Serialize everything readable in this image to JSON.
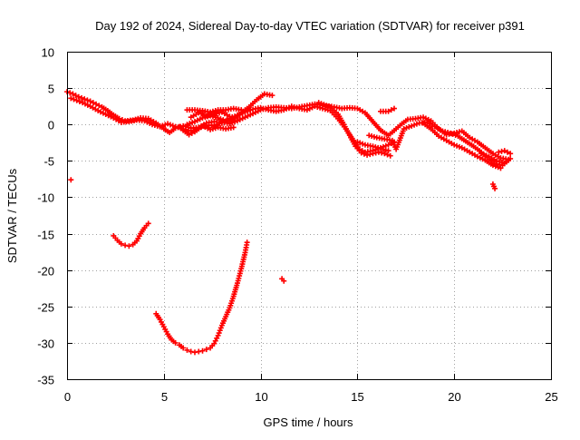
{
  "chart_data": {
    "type": "scatter",
    "title": "Day 192 of 2024, Sidereal Day-to-day VTEC variation (SDTVAR) for receiver p391",
    "xlabel": "GPS time / hours",
    "ylabel": "SDTVAR / TECUs",
    "xlim": [
      0,
      25
    ],
    "ylim": [
      -35,
      10
    ],
    "xticks": [
      "0",
      "5",
      "10",
      "15",
      "20",
      "25"
    ],
    "yticks": [
      "10",
      "5",
      "0",
      "-5",
      "-10",
      "-15",
      "-20",
      "-25",
      "-30",
      "-35"
    ],
    "grid": true,
    "marker": "+",
    "color": "#ff0000",
    "series": [
      {
        "name": "main-band-a",
        "points": [
          [
            0.0,
            4.5
          ],
          [
            0.3,
            4.2
          ],
          [
            0.6,
            3.8
          ],
          [
            0.9,
            3.5
          ],
          [
            1.2,
            3.2
          ],
          [
            1.5,
            2.8
          ],
          [
            1.8,
            2.4
          ],
          [
            2.1,
            1.9
          ],
          [
            2.4,
            1.3
          ],
          [
            2.7,
            0.8
          ],
          [
            3.0,
            0.5
          ],
          [
            3.4,
            0.6
          ],
          [
            3.8,
            0.9
          ],
          [
            4.2,
            0.8
          ],
          [
            4.6,
            0.2
          ],
          [
            5.0,
            -0.6
          ],
          [
            5.3,
            -1.1
          ],
          [
            5.6,
            -0.5
          ],
          [
            6.0,
            -0.2
          ],
          [
            6.4,
            -0.5
          ],
          [
            6.8,
            -0.4
          ],
          [
            7.2,
            0.2
          ],
          [
            7.6,
            0.4
          ],
          [
            8.0,
            0.3
          ],
          [
            8.4,
            0.1
          ],
          [
            8.8,
            0.5
          ],
          [
            9.2,
            1.0
          ],
          [
            9.6,
            1.5
          ],
          [
            10.0,
            2.0
          ],
          [
            10.4,
            2.3
          ],
          [
            10.8,
            2.4
          ],
          [
            11.2,
            2.3
          ],
          [
            11.6,
            2.2
          ],
          [
            12.0,
            2.4
          ],
          [
            12.4,
            2.6
          ],
          [
            12.8,
            2.8
          ],
          [
            13.2,
            2.6
          ],
          [
            13.6,
            2.4
          ],
          [
            14.0,
            1.4
          ],
          [
            14.3,
            0.0
          ],
          [
            14.6,
            -1.5
          ],
          [
            14.9,
            -3.0
          ],
          [
            15.2,
            -3.9
          ],
          [
            15.5,
            -4.2
          ],
          [
            15.8,
            -4.0
          ],
          [
            16.1,
            -3.8
          ],
          [
            16.4,
            -4.0
          ],
          [
            16.7,
            -4.3
          ]
        ]
      },
      {
        "name": "main-band-b",
        "points": [
          [
            0.2,
            3.6
          ],
          [
            0.5,
            3.3
          ],
          [
            0.8,
            3.0
          ],
          [
            1.2,
            2.5
          ],
          [
            1.6,
            1.9
          ],
          [
            2.0,
            1.4
          ],
          [
            2.4,
            0.9
          ],
          [
            2.8,
            0.3
          ],
          [
            3.2,
            0.4
          ],
          [
            3.6,
            0.6
          ],
          [
            4.0,
            0.5
          ],
          [
            4.4,
            0.0
          ],
          [
            4.8,
            -0.3
          ],
          [
            5.2,
            0.1
          ],
          [
            5.6,
            -0.3
          ],
          [
            6.0,
            -0.6
          ],
          [
            6.4,
            -0.9
          ],
          [
            6.8,
            -0.5
          ],
          [
            7.2,
            -0.1
          ],
          [
            7.6,
            -0.1
          ],
          [
            8.0,
            0.2
          ],
          [
            8.4,
            0.8
          ],
          [
            8.8,
            1.3
          ],
          [
            9.2,
            1.7
          ],
          [
            9.6,
            2.1
          ],
          [
            10.0,
            2.3
          ],
          [
            10.4,
            2.0
          ],
          [
            10.8,
            1.8
          ],
          [
            11.2,
            2.0
          ],
          [
            11.6,
            2.5
          ],
          [
            12.0,
            2.2
          ],
          [
            12.4,
            2.0
          ],
          [
            12.8,
            2.5
          ],
          [
            13.2,
            2.2
          ],
          [
            13.6,
            1.9
          ],
          [
            14.0,
            0.8
          ],
          [
            14.4,
            -0.6
          ],
          [
            14.8,
            -2.2
          ],
          [
            15.1,
            -3.4
          ],
          [
            15.4,
            -3.8
          ],
          [
            15.8,
            -3.6
          ],
          [
            16.2,
            -3.2
          ],
          [
            16.6,
            -2.8
          ],
          [
            16.9,
            -2.4
          ]
        ]
      },
      {
        "name": "mid-arcs",
        "points": [
          [
            6.2,
            0.0
          ],
          [
            6.6,
            0.4
          ],
          [
            7.0,
            0.9
          ],
          [
            7.4,
            1.2
          ],
          [
            7.8,
            0.9
          ],
          [
            8.2,
            0.5
          ],
          [
            8.6,
            0.7
          ],
          [
            9.0,
            1.6
          ],
          [
            9.4,
            2.4
          ],
          [
            9.8,
            3.4
          ],
          [
            10.2,
            4.2
          ],
          [
            10.6,
            4.0
          ],
          [
            6.4,
            1.0
          ],
          [
            6.8,
            1.6
          ],
          [
            7.2,
            1.2
          ],
          [
            7.6,
            1.4
          ],
          [
            8.0,
            1.7
          ],
          [
            8.4,
            1.1
          ],
          [
            8.8,
            0.9
          ],
          [
            5.8,
            -0.3
          ],
          [
            6.0,
            -0.8
          ],
          [
            6.3,
            -1.4
          ],
          [
            6.6,
            -1.0
          ],
          [
            7.0,
            -0.2
          ],
          [
            7.4,
            -0.7
          ],
          [
            7.8,
            -0.4
          ],
          [
            8.2,
            -0.6
          ],
          [
            8.6,
            -0.4
          ],
          [
            6.2,
            2.0
          ],
          [
            6.6,
            2.0
          ],
          [
            7.0,
            1.9
          ],
          [
            7.4,
            1.7
          ],
          [
            7.8,
            2.0
          ],
          [
            8.2,
            2.0
          ],
          [
            8.6,
            2.2
          ],
          [
            9.0,
            2.0
          ]
        ]
      },
      {
        "name": "right-arcs",
        "points": [
          [
            13.0,
            3.0
          ],
          [
            13.4,
            2.6
          ],
          [
            13.8,
            2.4
          ],
          [
            14.2,
            2.2
          ],
          [
            14.6,
            2.3
          ],
          [
            15.0,
            2.2
          ],
          [
            15.4,
            1.6
          ],
          [
            15.8,
            0.4
          ],
          [
            16.2,
            -0.8
          ],
          [
            16.6,
            -1.5
          ],
          [
            17.0,
            -0.6
          ],
          [
            17.3,
            0.1
          ],
          [
            17.6,
            0.7
          ],
          [
            18.0,
            0.8
          ],
          [
            18.4,
            1.0
          ],
          [
            18.8,
            0.5
          ],
          [
            19.2,
            -0.6
          ],
          [
            19.6,
            -1.4
          ],
          [
            20.0,
            -1.2
          ],
          [
            20.4,
            -0.9
          ],
          [
            20.8,
            -1.8
          ],
          [
            21.2,
            -2.4
          ],
          [
            21.6,
            -3.2
          ],
          [
            22.0,
            -4.0
          ],
          [
            22.4,
            -4.6
          ],
          [
            22.8,
            -4.8
          ],
          [
            15.0,
            -2.4
          ],
          [
            15.4,
            -2.8
          ],
          [
            15.8,
            -3.0
          ],
          [
            16.2,
            -3.3
          ],
          [
            16.6,
            -3.6
          ],
          [
            16.2,
            1.8
          ],
          [
            16.6,
            1.8
          ],
          [
            16.9,
            2.2
          ],
          [
            15.6,
            -1.5
          ],
          [
            16.0,
            -1.8
          ],
          [
            16.4,
            -2.0
          ],
          [
            16.8,
            -2.2
          ],
          [
            17.0,
            -3.4
          ],
          [
            17.4,
            -0.6
          ],
          [
            17.8,
            -0.2
          ],
          [
            18.2,
            0.2
          ],
          [
            18.6,
            0.3
          ],
          [
            19.0,
            -0.3
          ],
          [
            19.4,
            -0.9
          ],
          [
            19.8,
            -1.2
          ],
          [
            20.2,
            -1.6
          ],
          [
            20.6,
            -2.3
          ],
          [
            21.0,
            -3.0
          ],
          [
            21.4,
            -3.8
          ],
          [
            21.8,
            -4.8
          ],
          [
            22.2,
            -5.4
          ],
          [
            22.5,
            -5.6
          ],
          [
            22.9,
            -4.7
          ],
          [
            22.1,
            -8.8
          ],
          [
            22.0,
            -8.2
          ],
          [
            22.3,
            -3.8
          ],
          [
            22.6,
            -3.6
          ],
          [
            22.9,
            -4.0
          ],
          [
            21.4,
            -4.0
          ],
          [
            21.8,
            -4.4
          ],
          [
            22.2,
            -5.0
          ],
          [
            22.6,
            -5.3
          ],
          [
            18.4,
            0.2
          ],
          [
            18.8,
            -0.6
          ],
          [
            19.2,
            -1.6
          ],
          [
            19.6,
            -2.2
          ],
          [
            20.0,
            -2.8
          ],
          [
            20.4,
            -3.2
          ],
          [
            20.8,
            -3.8
          ],
          [
            21.2,
            -4.4
          ],
          [
            21.6,
            -4.9
          ],
          [
            22.0,
            -5.6
          ],
          [
            22.4,
            -6.0
          ]
        ]
      },
      {
        "name": "isolated-point",
        "points": [
          [
            0.2,
            -7.6
          ]
        ]
      },
      {
        "name": "low-arc-1",
        "points": [
          [
            2.4,
            -15.3
          ],
          [
            2.6,
            -15.9
          ],
          [
            2.8,
            -16.4
          ],
          [
            3.0,
            -16.6
          ],
          [
            3.2,
            -16.7
          ],
          [
            3.4,
            -16.5
          ],
          [
            3.6,
            -16.0
          ],
          [
            3.8,
            -15.0
          ],
          [
            4.0,
            -14.2
          ],
          [
            4.2,
            -13.6
          ]
        ]
      },
      {
        "name": "low-arc-2",
        "points": [
          [
            4.6,
            -26.0
          ],
          [
            4.8,
            -26.8
          ],
          [
            5.0,
            -27.8
          ],
          [
            5.2,
            -28.8
          ],
          [
            5.4,
            -29.6
          ],
          [
            5.6,
            -30.0
          ],
          [
            5.8,
            -30.3
          ],
          [
            6.0,
            -30.7
          ],
          [
            6.2,
            -31.0
          ],
          [
            6.4,
            -31.2
          ],
          [
            6.6,
            -31.3
          ],
          [
            6.8,
            -31.2
          ],
          [
            7.0,
            -31.1
          ],
          [
            7.2,
            -30.9
          ],
          [
            7.4,
            -30.7
          ],
          [
            7.6,
            -30.1
          ],
          [
            7.8,
            -29.0
          ],
          [
            8.0,
            -27.6
          ],
          [
            8.2,
            -26.4
          ],
          [
            8.4,
            -25.2
          ],
          [
            8.6,
            -23.6
          ],
          [
            8.8,
            -21.8
          ],
          [
            9.0,
            -19.8
          ],
          [
            9.2,
            -17.6
          ],
          [
            9.3,
            -16.2
          ]
        ]
      },
      {
        "name": "low-point-2",
        "points": [
          [
            11.1,
            -21.2
          ],
          [
            11.2,
            -21.5
          ]
        ]
      }
    ]
  }
}
